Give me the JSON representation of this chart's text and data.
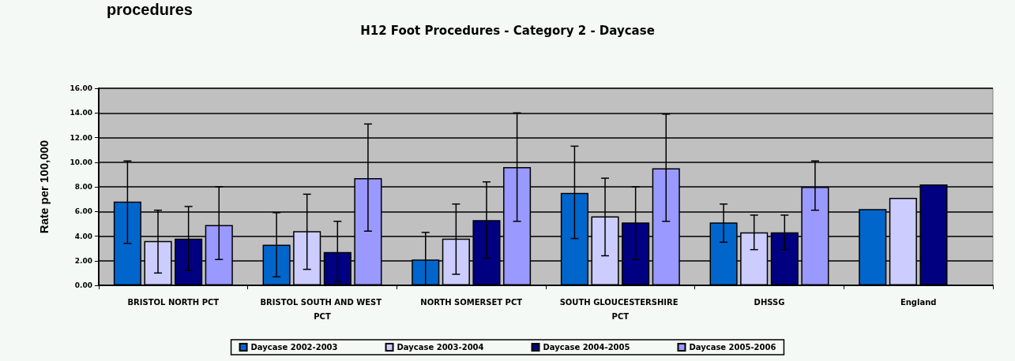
{
  "chart_data": {
    "type": "bar",
    "title": "H12 Foot Procedures - Category 2 - Daycase",
    "ylabel": "Rate per 100,000",
    "annotations": [
      "procedures"
    ],
    "categories": [
      "BRISTOL NORTH PCT",
      "BRISTOL SOUTH AND WEST PCT",
      "NORTH SOMERSET PCT",
      "SOUTH GLOUCESTERSHIRE PCT",
      "DHSSG",
      "England"
    ],
    "series": [
      {
        "name": "Daycase 2002-2003",
        "color": "#0066cc",
        "values": [
          6.8,
          3.3,
          2.1,
          7.5,
          5.1,
          6.2
        ],
        "errors": [
          [
            3.4,
            10.1
          ],
          [
            0.7,
            5.9
          ],
          [
            0.0,
            4.3
          ],
          [
            3.8,
            11.3
          ],
          [
            3.5,
            6.6
          ],
          null
        ]
      },
      {
        "name": "Daycase 2003-2004",
        "color": "#ccccff",
        "values": [
          3.6,
          4.4,
          3.8,
          5.6,
          4.3,
          7.1
        ],
        "errors": [
          [
            1.0,
            6.1
          ],
          [
            1.3,
            7.4
          ],
          [
            0.9,
            6.6
          ],
          [
            2.4,
            8.7
          ],
          [
            2.9,
            5.7
          ],
          null
        ]
      },
      {
        "name": "Daycase 2004-2005",
        "color": "#000080",
        "values": [
          3.8,
          2.7,
          5.3,
          5.1,
          4.3,
          8.2
        ],
        "errors": [
          [
            1.2,
            6.4
          ],
          [
            0.3,
            5.2
          ],
          [
            2.2,
            8.4
          ],
          [
            2.1,
            8.0
          ],
          [
            2.9,
            5.7
          ],
          null
        ]
      },
      {
        "name": "Daycase 2005-2006",
        "color": "#9999ff",
        "values": [
          4.9,
          8.7,
          9.6,
          9.5,
          8.0,
          null
        ],
        "errors": [
          [
            2.1,
            8.0
          ],
          [
            4.4,
            13.1
          ],
          [
            5.2,
            14.0
          ],
          [
            5.2,
            13.9
          ],
          [
            6.1,
            10.1
          ],
          null
        ]
      }
    ],
    "ylim": [
      0,
      16
    ],
    "yticks": [
      {
        "value": 0,
        "label": "0.00"
      },
      {
        "value": 2,
        "label": "2.00"
      },
      {
        "value": 4,
        "label": "4.00"
      },
      {
        "value": 6,
        "label": "6.00"
      },
      {
        "value": 8,
        "label": "8.00"
      },
      {
        "value": 10,
        "label": "10.00"
      },
      {
        "value": 12,
        "label": "12.00"
      },
      {
        "value": 14,
        "label": "14.00"
      },
      {
        "value": 16,
        "label": "16.00"
      }
    ],
    "grid": "y",
    "legend": "bottom"
  }
}
